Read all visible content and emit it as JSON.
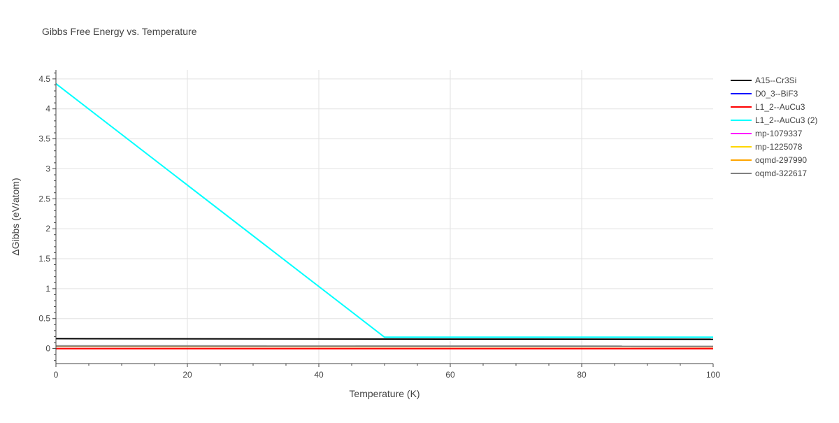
{
  "chart_data": {
    "type": "line",
    "title": "Gibbs Free Energy vs. Temperature",
    "xlabel": "Temperature (K)",
    "ylabel": "ΔGibbs (eV/atom)",
    "xlim": [
      0,
      100
    ],
    "ylim": [
      -0.25,
      4.65
    ],
    "x_ticks": [
      0,
      20,
      40,
      60,
      80,
      100
    ],
    "x_tick_labels": [
      "0",
      "20",
      "40",
      "60",
      "80",
      "100"
    ],
    "y_ticks": [
      0,
      0.5,
      1,
      1.5,
      2,
      2.5,
      3,
      3.5,
      4,
      4.5
    ],
    "y_tick_labels": [
      "0",
      "0.5",
      "1",
      "1.5",
      "2",
      "2.5",
      "3",
      "3.5",
      "4",
      "4.5"
    ],
    "grid": true,
    "legend_position": "right",
    "series": [
      {
        "name": "A15--Cr3Si",
        "color": "#000000",
        "x": [
          0,
          100
        ],
        "y": [
          0.165,
          0.155
        ]
      },
      {
        "name": "D0_3--BiF3",
        "color": "#0000ff",
        "x": [
          0,
          100
        ],
        "y": [
          0.04,
          0.035
        ]
      },
      {
        "name": "L1_2--AuCu3",
        "color": "#ff0000",
        "x": [
          0,
          100
        ],
        "y": [
          0.0,
          0.0
        ]
      },
      {
        "name": "L1_2--AuCu3 (2)",
        "color": "#00ffff",
        "x": [
          0,
          50,
          100
        ],
        "y": [
          4.42,
          0.19,
          0.19
        ]
      },
      {
        "name": "mp-1079337",
        "color": "#ff00ff",
        "x": [
          0,
          100
        ],
        "y": [
          0.04,
          0.035
        ]
      },
      {
        "name": "mp-1225078",
        "color": "#ffd700",
        "x": [
          0,
          100
        ],
        "y": [
          0.04,
          0.035
        ]
      },
      {
        "name": "oqmd-297990",
        "color": "#ffa500",
        "x": [
          0,
          100
        ],
        "y": [
          0.04,
          0.035
        ]
      },
      {
        "name": "oqmd-322617",
        "color": "#808080",
        "x": [
          0,
          100
        ],
        "y": [
          0.045,
          0.04
        ]
      }
    ]
  }
}
